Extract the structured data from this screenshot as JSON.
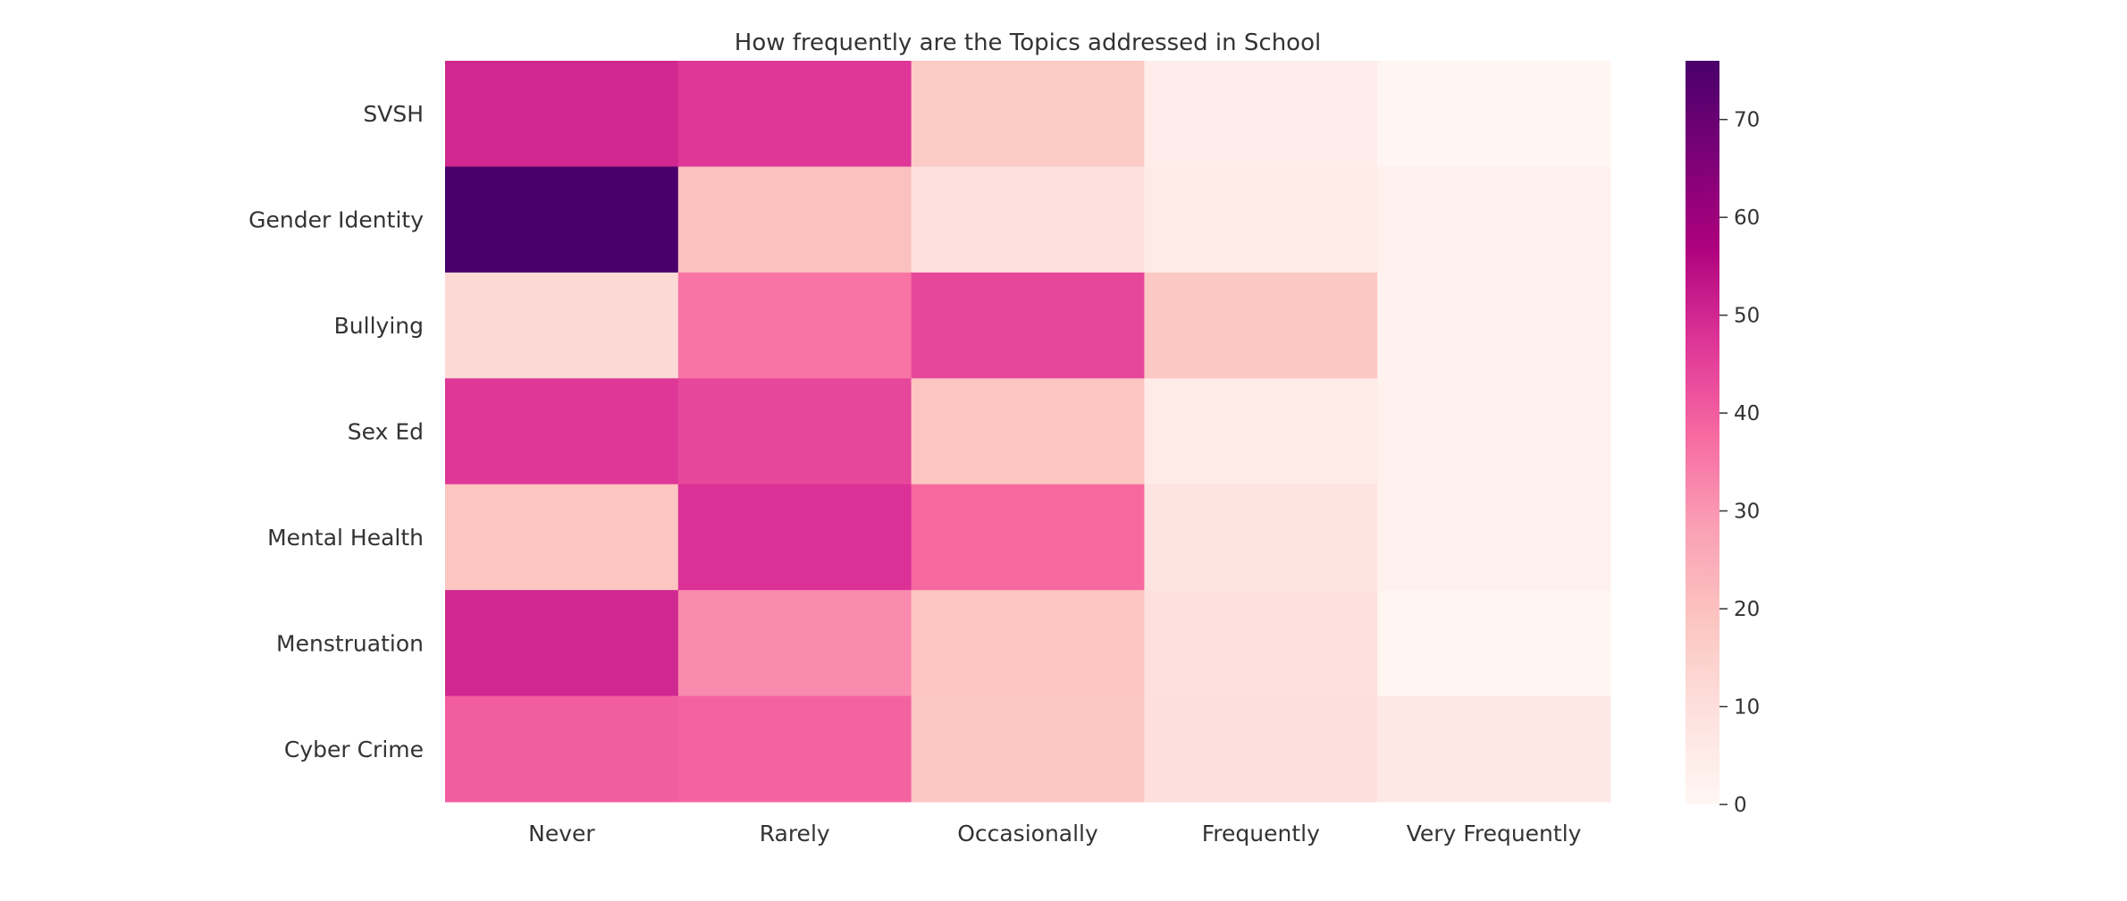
{
  "chart_data": {
    "type": "heatmap",
    "title": "How frequently are the Topics addressed in School",
    "xlabel": "",
    "ylabel": "",
    "columns": [
      "Never",
      "Rarely",
      "Occasionally",
      "Frequently",
      "Very Frequently"
    ],
    "rows": [
      "SVSH",
      "Gender Identity",
      "Bullying",
      "Sex Ed",
      "Mental Health",
      "Menstruation",
      "Cyber Crime"
    ],
    "values": [
      [
        50,
        47,
        17,
        4,
        1
      ],
      [
        76,
        20,
        9,
        5,
        2
      ],
      [
        12,
        36,
        44,
        18,
        2
      ],
      [
        47,
        44,
        19,
        5,
        2
      ],
      [
        19,
        48,
        38,
        8,
        2
      ],
      [
        50,
        32,
        19,
        9,
        1
      ],
      [
        40,
        39,
        18,
        10,
        6
      ]
    ],
    "colorbar": {
      "min": 0,
      "max": 76,
      "ticks": [
        0,
        10,
        20,
        30,
        40,
        50,
        60,
        70
      ],
      "colormap": "RdPu",
      "low_color": "#fff7f3",
      "high_color": "#49006a"
    },
    "grid": false
  }
}
